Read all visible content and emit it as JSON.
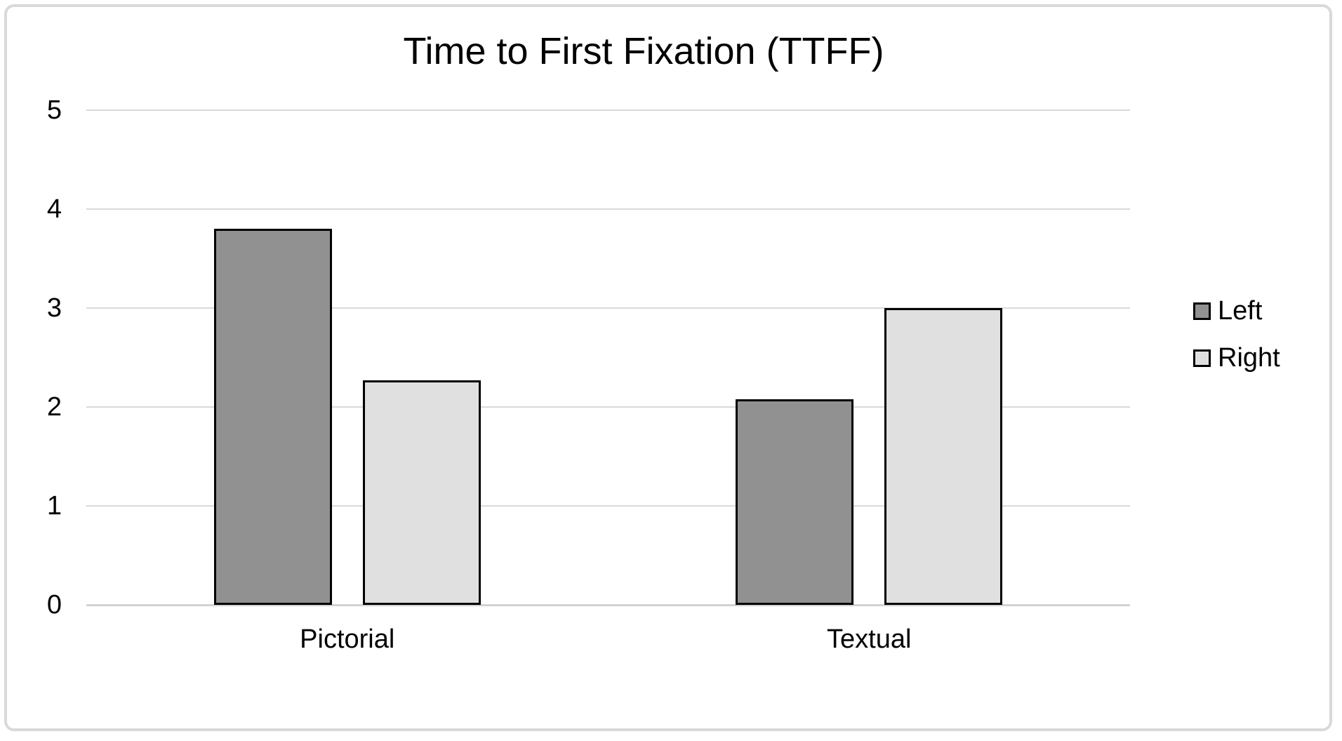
{
  "chart": {
    "title": "Time to First Fixation (TTFF)"
  },
  "colors": {
    "left_series_fill": "#919191",
    "right_series_fill": "#e0e0e0",
    "bar_border": "#000000",
    "gridline": "#d9d9d9",
    "canvas_border": "#d9d9d9",
    "text": "#000000"
  },
  "chart_data": {
    "type": "bar",
    "title": "Time to First Fixation (TTFF)",
    "categories": [
      "Pictorial",
      "Textual"
    ],
    "series": [
      {
        "name": "Left",
        "fill": "#919191",
        "values": [
          3.8,
          2.08
        ]
      },
      {
        "name": "Right",
        "fill": "#e0e0e0",
        "values": [
          2.27,
          3.0
        ]
      }
    ],
    "xlabel": "",
    "ylabel": "",
    "ylim": [
      0,
      5
    ],
    "yticks": [
      0,
      1,
      2,
      3,
      4,
      5
    ],
    "grid": true,
    "legend_position": "right"
  }
}
